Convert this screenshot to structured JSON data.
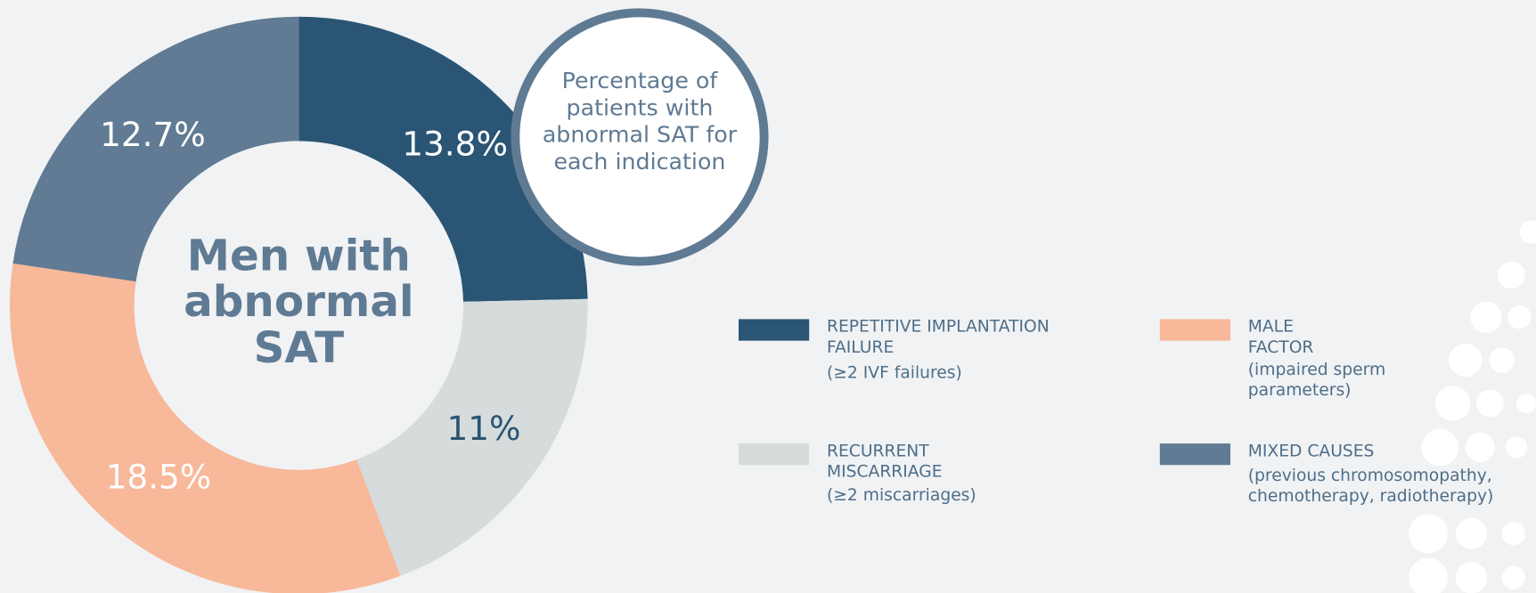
{
  "chart_data": {
    "type": "donut",
    "center_label": "Men with abnormal SAT",
    "callout": "Percentage of patients with abnormal SAT for each indication",
    "categories": [
      "REPETITIVE IMPLANTATION FAILURE",
      "RECURRENT MISCARRIAGE",
      "MALE FACTOR",
      "MIXED CAUSES"
    ],
    "descriptions": [
      "(≥2 IVF failures)",
      "(≥2 miscarriages)",
      "(impaired sperm parameters)",
      "(previous chromosomopathy, chemotherapy, radiotherapy)"
    ],
    "values": [
      13.8,
      11,
      18.5,
      12.7
    ],
    "value_labels": [
      "13.8%",
      "11%",
      "18.5%",
      "12.7%"
    ],
    "colors": [
      "#2a5574",
      "#d6dcdb",
      "#f8b89a",
      "#607b93"
    ]
  }
}
